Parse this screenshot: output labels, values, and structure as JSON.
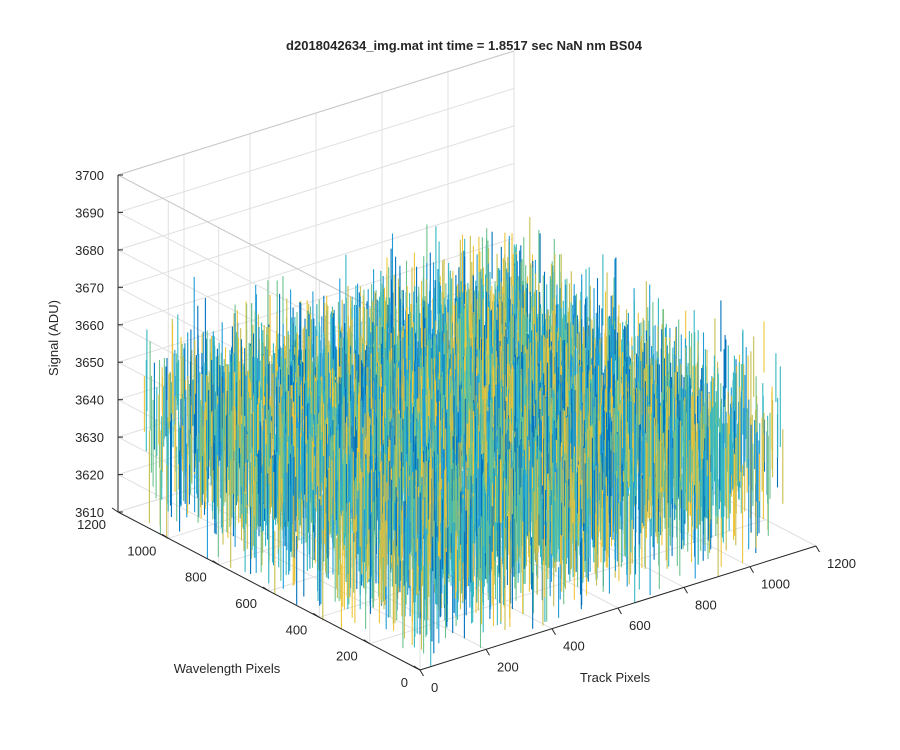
{
  "chart_data": {
    "type": "surface",
    "title": "d2018042634_img.mat int time = 1.8517 sec  NaN nm BS04",
    "xlabel": "Track Pixels",
    "ylabel": "Wavelength Pixels",
    "zlabel": "Signal (ADU)",
    "xlim": [
      0,
      1200
    ],
    "ylim": [
      0,
      1200
    ],
    "zlim": [
      3610,
      3700
    ],
    "xticks": [
      "0",
      "200",
      "400",
      "600",
      "800",
      "1000",
      "1200"
    ],
    "yticks": [
      "0",
      "200",
      "400",
      "600",
      "800",
      "1000",
      "1200"
    ],
    "zticks": [
      "3610",
      "3620",
      "3630",
      "3640",
      "3650",
      "3660",
      "3670",
      "3680",
      "3690",
      "3700"
    ],
    "data_extent": {
      "x": [
        0,
        1100
      ],
      "y": [
        0,
        1100
      ]
    },
    "signal_mean": 3648,
    "signal_range": [
      3610,
      3695
    ],
    "grid": true,
    "colormap": [
      "#0072bd",
      "#1f9bd8",
      "#35b8c2",
      "#6cc28f",
      "#c8bf4d",
      "#eec53a"
    ]
  }
}
